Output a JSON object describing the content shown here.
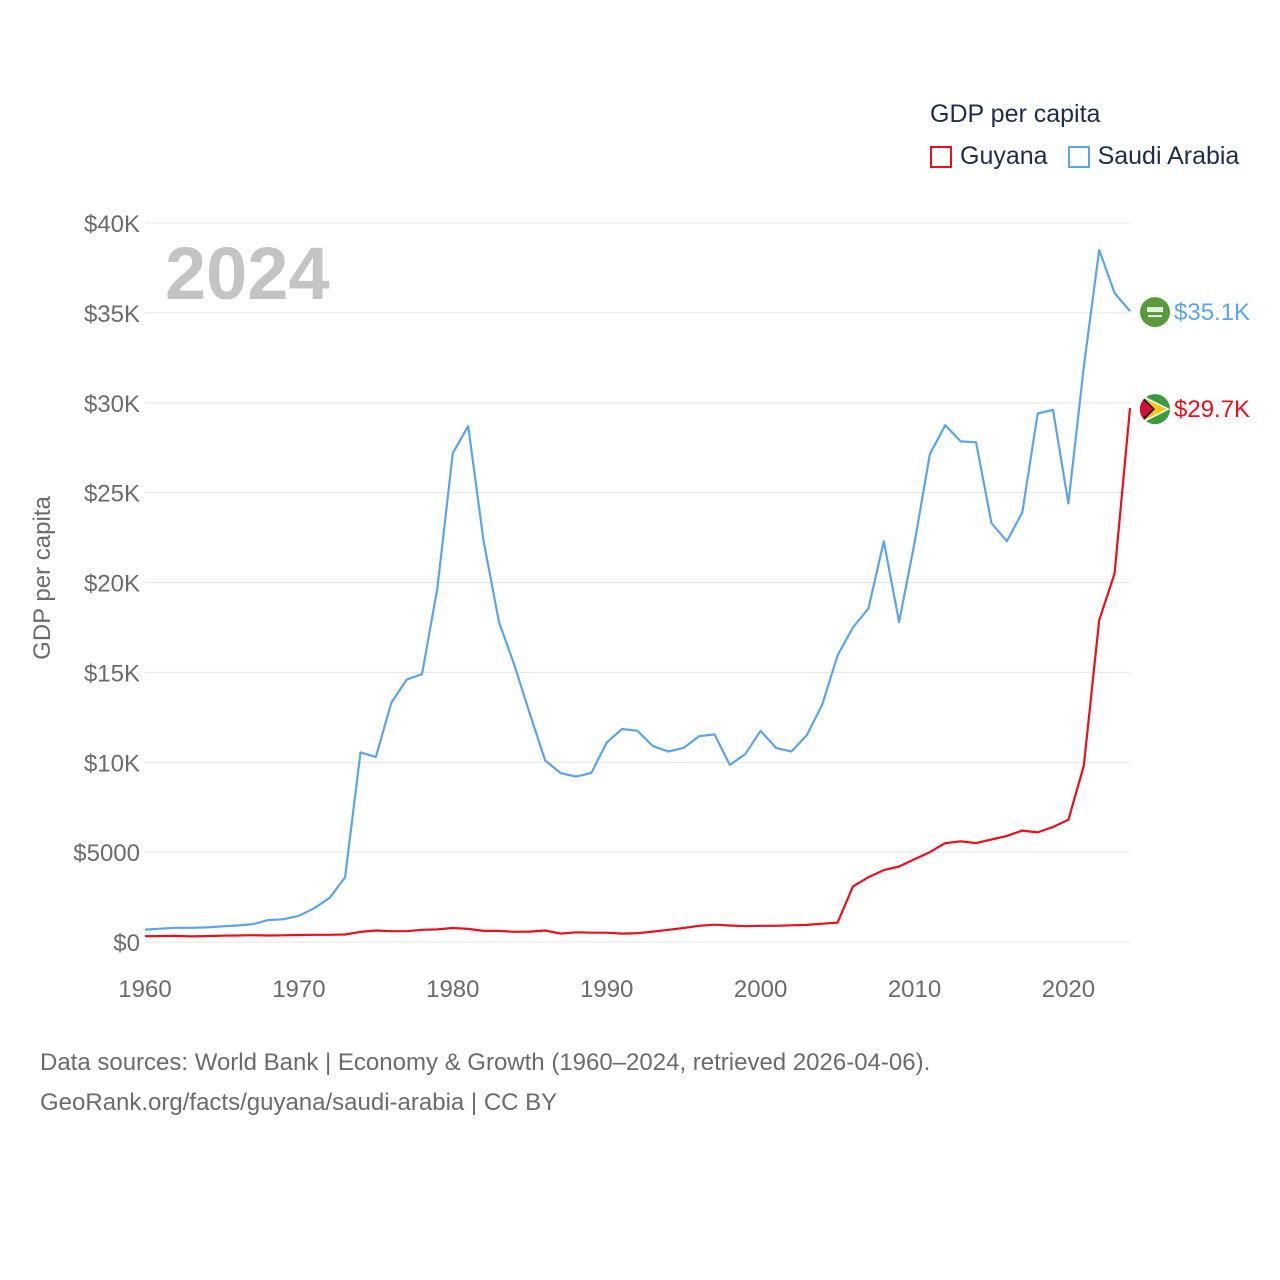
{
  "colors": {
    "guyana": "#e8101c",
    "saudi_arabia": "#5ea4e8",
    "axis_text": "#6b6b6b",
    "grid": "#e6e6e6",
    "year_watermark": "#c4c4c4",
    "saudi_flag": "#5a9a3c",
    "guyana_flag_green": "#3a9a40",
    "guyana_flag_yellow": "#f5c518",
    "guyana_flag_red": "#d21034"
  },
  "legend": {
    "title": "GDP per capita",
    "items": [
      {
        "label": "Guyana"
      },
      {
        "label": "Saudi Arabia"
      }
    ]
  },
  "source": {
    "line1": "Data sources: World Bank | Economy & Growth (1960–2024, retrieved 2026-04-06).",
    "line2": "GeoRank.org/facts/guyana/saudi-arabia | CC BY"
  },
  "chart_data": {
    "type": "line",
    "title": "GDP per capita",
    "current_year_label": "2024",
    "xlabel": "",
    "ylabel": "GDP per capita",
    "xlim": [
      1960,
      2024
    ],
    "ylim": [
      0,
      40000
    ],
    "grid": true,
    "legend_position": "top-right",
    "y_ticks": [
      {
        "value": 0,
        "label": "$0"
      },
      {
        "value": 5000,
        "label": "$5000"
      },
      {
        "value": 10000,
        "label": "$10K"
      },
      {
        "value": 15000,
        "label": "$15K"
      },
      {
        "value": 20000,
        "label": "$20K"
      },
      {
        "value": 25000,
        "label": "$25K"
      },
      {
        "value": 30000,
        "label": "$30K"
      },
      {
        "value": 35000,
        "label": "$35K"
      },
      {
        "value": 40000,
        "label": "$40K"
      }
    ],
    "x_ticks": [
      {
        "value": 1960,
        "label": "1960"
      },
      {
        "value": 1970,
        "label": "1970"
      },
      {
        "value": 1980,
        "label": "1980"
      },
      {
        "value": 1990,
        "label": "1990"
      },
      {
        "value": 2000,
        "label": "2000"
      },
      {
        "value": 2010,
        "label": "2010"
      },
      {
        "value": 2020,
        "label": "2020"
      }
    ],
    "x": [
      1960,
      1961,
      1962,
      1963,
      1964,
      1965,
      1966,
      1967,
      1968,
      1969,
      1970,
      1971,
      1972,
      1973,
      1974,
      1975,
      1976,
      1977,
      1978,
      1979,
      1980,
      1981,
      1982,
      1983,
      1984,
      1985,
      1986,
      1987,
      1988,
      1989,
      1990,
      1991,
      1992,
      1993,
      1994,
      1995,
      1996,
      1997,
      1998,
      1999,
      2000,
      2001,
      2002,
      2003,
      2004,
      2005,
      2006,
      2007,
      2008,
      2009,
      2010,
      2011,
      2012,
      2013,
      2014,
      2015,
      2016,
      2017,
      2018,
      2019,
      2020,
      2021,
      2022,
      2023,
      2024
    ],
    "series": [
      {
        "name": "Guyana",
        "color_key": "guyana",
        "end_label": "$29.7K",
        "values": [
          320,
          330,
          340,
          310,
          330,
          350,
          360,
          380,
          360,
          370,
          390,
          400,
          400,
          420,
          560,
          640,
          600,
          600,
          680,
          700,
          780,
          730,
          620,
          620,
          570,
          580,
          640,
          470,
          540,
          520,
          520,
          470,
          490,
          580,
          680,
          780,
          900,
          960,
          920,
          880,
          900,
          900,
          930,
          950,
          1020,
          1080,
          3100,
          3600,
          4000,
          4200,
          4600,
          5000,
          5500,
          5600,
          5500,
          5700,
          5900,
          6200,
          6100,
          6400,
          6800,
          9800,
          17900,
          20500,
          29700
        ]
      },
      {
        "name": "Saudi Arabia",
        "color_key": "saudi_arabia",
        "end_label": "$35.1K",
        "values": [
          690,
          740,
          790,
          790,
          810,
          870,
          920,
          990,
          1220,
          1270,
          1460,
          1880,
          2460,
          3600,
          10550,
          10300,
          13300,
          14600,
          14900,
          19700,
          27200,
          28700,
          22300,
          17800,
          15400,
          12700,
          10100,
          9400,
          9200,
          9400,
          11100,
          11850,
          11750,
          10900,
          10600,
          10800,
          11450,
          11550,
          9850,
          10450,
          11750,
          10800,
          10600,
          11500,
          13200,
          15950,
          17500,
          18550,
          22300,
          17800,
          22200,
          27150,
          28750,
          27850,
          27800,
          23300,
          22300,
          23900,
          29400,
          29600,
          24400,
          32000,
          38500,
          36100,
          35100
        ]
      }
    ]
  }
}
